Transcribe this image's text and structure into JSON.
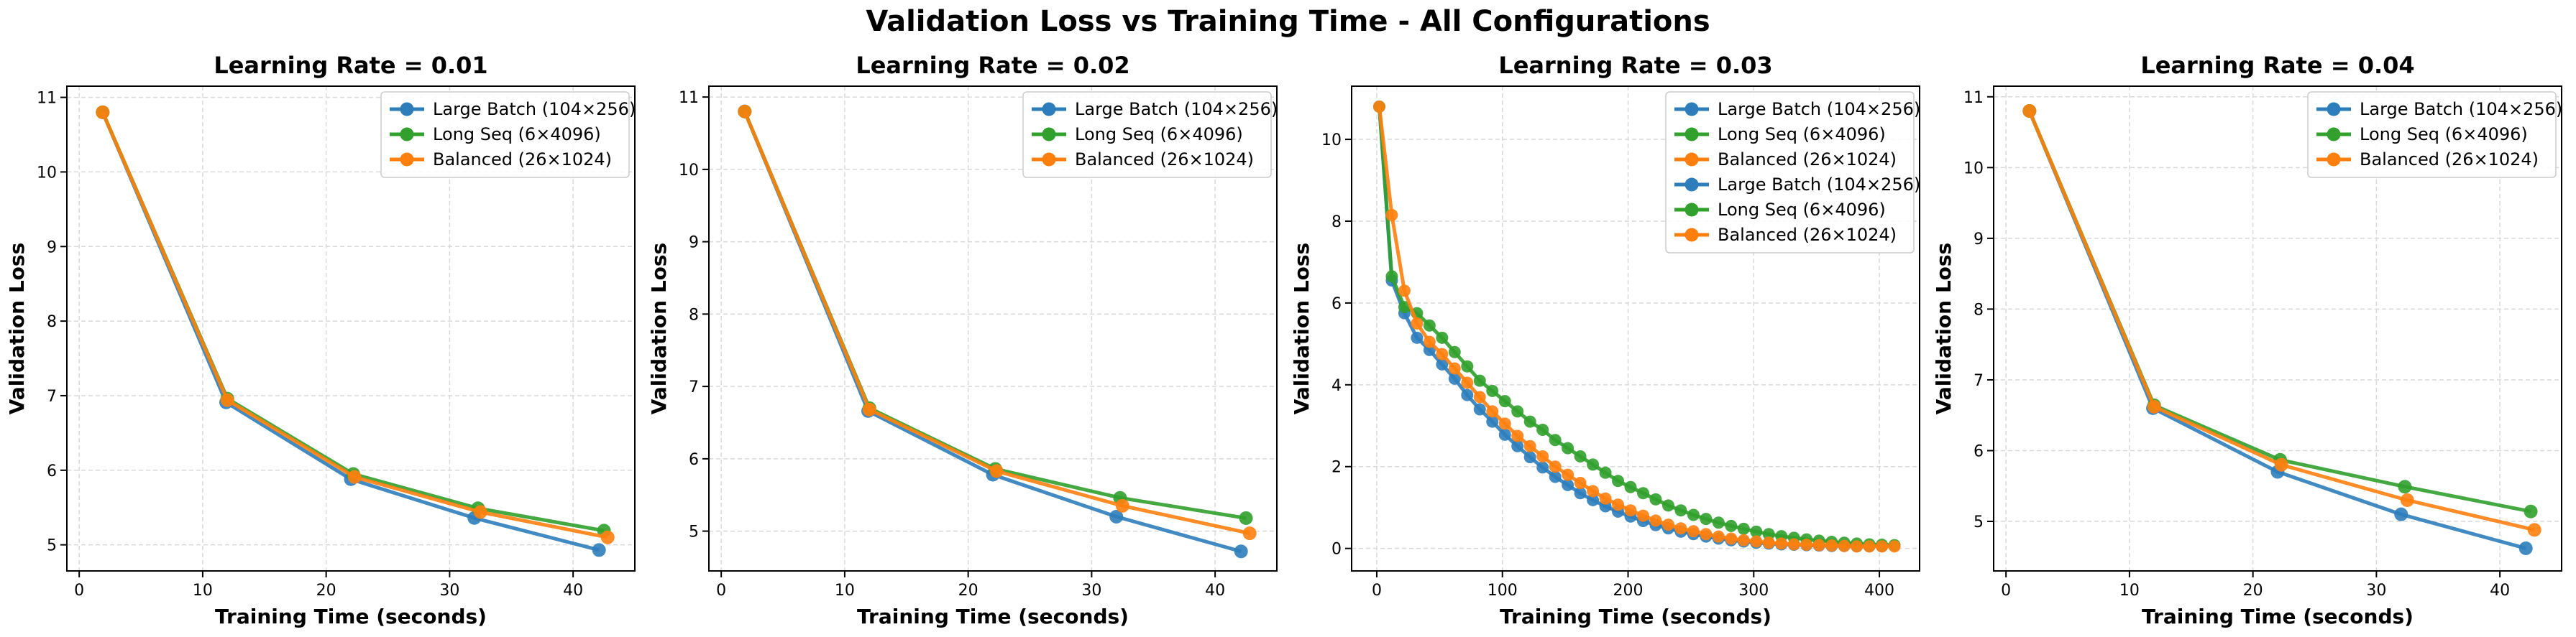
{
  "figure": {
    "suptitle": "Validation Loss vs Training Time - All Configurations"
  },
  "colors": {
    "large_batch": "#2e7dbb",
    "long_seq": "#31a02c",
    "balanced": "#ff7f0e",
    "grid": "#d9d9d9",
    "axis": "#000000"
  },
  "chart_data": [
    {
      "type": "line",
      "title": "Learning Rate = 0.01",
      "xlabel": "Training Time (seconds)",
      "ylabel": "Validation Loss",
      "xlim": [
        -1,
        45
      ],
      "ylim": [
        4.65,
        11.15
      ],
      "xticks": [
        0,
        10,
        20,
        30,
        40
      ],
      "yticks": [
        5,
        6,
        7,
        8,
        9,
        10,
        11
      ],
      "grid": true,
      "legend": "upper right",
      "series": [
        {
          "name": "Large Batch (104×256)",
          "color_key": "large_batch",
          "x": [
            1.9,
            11.9,
            22.0,
            32.0,
            42.1
          ],
          "y": [
            10.8,
            6.91,
            5.88,
            5.36,
            4.93
          ]
        },
        {
          "name": "Long Seq (6×4096)",
          "color_key": "long_seq",
          "x": [
            1.9,
            12.0,
            22.2,
            32.3,
            42.5
          ],
          "y": [
            10.8,
            6.96,
            5.95,
            5.49,
            5.19
          ]
        },
        {
          "name": "Balanced (26×1024)",
          "color_key": "balanced",
          "x": [
            1.9,
            12.0,
            22.3,
            32.5,
            42.8
          ],
          "y": [
            10.8,
            6.94,
            5.91,
            5.44,
            5.1
          ]
        }
      ]
    },
    {
      "type": "line",
      "title": "Learning Rate = 0.02",
      "xlabel": "Training Time (seconds)",
      "ylabel": "Validation Loss",
      "xlim": [
        -1,
        45
      ],
      "ylim": [
        4.45,
        11.15
      ],
      "xticks": [
        0,
        10,
        20,
        30,
        40
      ],
      "yticks": [
        5,
        6,
        7,
        8,
        9,
        10,
        11
      ],
      "grid": true,
      "legend": "upper right",
      "series": [
        {
          "name": "Large Batch (104×256)",
          "color_key": "large_batch",
          "x": [
            1.9,
            11.9,
            22.0,
            32.0,
            42.1
          ],
          "y": [
            10.8,
            6.66,
            5.78,
            5.2,
            4.72
          ]
        },
        {
          "name": "Long Seq (6×4096)",
          "color_key": "long_seq",
          "x": [
            1.9,
            12.0,
            22.2,
            32.3,
            42.5
          ],
          "y": [
            10.8,
            6.7,
            5.86,
            5.46,
            5.18
          ]
        },
        {
          "name": "Balanced (26×1024)",
          "color_key": "balanced",
          "x": [
            1.9,
            12.0,
            22.3,
            32.5,
            42.8
          ],
          "y": [
            10.8,
            6.68,
            5.83,
            5.35,
            4.97
          ]
        }
      ]
    },
    {
      "type": "line",
      "title": "Learning Rate = 0.03",
      "xlabel": "Training Time (seconds)",
      "ylabel": "Validation Loss",
      "xlim": [
        -20,
        432
      ],
      "ylim": [
        -0.55,
        11.3
      ],
      "xticks": [
        0,
        100,
        200,
        300,
        400
      ],
      "yticks": [
        0,
        2,
        4,
        6,
        8,
        10
      ],
      "grid": true,
      "legend": "upper right",
      "series": [
        {
          "name": "Large Batch (104×256)",
          "color_key": "large_batch",
          "x": [
            2,
            12,
            22,
            32,
            42,
            52,
            62,
            72,
            82,
            92,
            102,
            112,
            122,
            132,
            142,
            152,
            162,
            172,
            182,
            192,
            202,
            212,
            222,
            232,
            242,
            252,
            262,
            272,
            282,
            292,
            302,
            312,
            322,
            332,
            342,
            352,
            362,
            372,
            382,
            392,
            402
          ],
          "y": [
            10.8,
            6.55,
            5.75,
            5.15,
            4.85,
            4.5,
            4.15,
            3.75,
            3.4,
            3.1,
            2.78,
            2.5,
            2.23,
            1.98,
            1.75,
            1.55,
            1.35,
            1.18,
            1.03,
            0.9,
            0.78,
            0.67,
            0.57,
            0.49,
            0.41,
            0.35,
            0.29,
            0.24,
            0.2,
            0.17,
            0.14,
            0.12,
            0.1,
            0.09,
            0.08,
            0.07,
            0.06,
            0.06,
            0.05,
            0.05,
            0.05
          ]
        },
        {
          "name": "Long Seq (6×4096)",
          "color_key": "long_seq",
          "x": [
            2,
            12,
            22,
            32,
            42,
            52,
            62,
            72,
            82,
            92,
            102,
            112,
            122,
            132,
            142,
            152,
            162,
            172,
            182,
            192,
            202,
            212,
            222,
            232,
            242,
            252,
            262,
            272,
            282,
            292,
            302,
            312,
            322,
            332,
            342,
            352,
            362,
            372,
            382,
            392,
            402,
            412
          ],
          "y": [
            10.8,
            6.65,
            5.9,
            5.75,
            5.45,
            5.15,
            4.8,
            4.45,
            4.1,
            3.85,
            3.6,
            3.35,
            3.1,
            2.9,
            2.65,
            2.45,
            2.25,
            2.05,
            1.85,
            1.65,
            1.5,
            1.35,
            1.2,
            1.05,
            0.93,
            0.82,
            0.72,
            0.63,
            0.55,
            0.48,
            0.41,
            0.35,
            0.3,
            0.26,
            0.22,
            0.19,
            0.16,
            0.14,
            0.12,
            0.1,
            0.09,
            0.08
          ]
        },
        {
          "name": "Balanced (26×1024)",
          "color_key": "balanced",
          "x": [
            2,
            12,
            22,
            32,
            42,
            52,
            62,
            72,
            82,
            92,
            102,
            112,
            122,
            132,
            142,
            152,
            162,
            172,
            182,
            192,
            202,
            212,
            222,
            232,
            242,
            252,
            262,
            272,
            282,
            292,
            302,
            312,
            322,
            332,
            342,
            352,
            362,
            372,
            382,
            392,
            402,
            412
          ],
          "y": [
            10.8,
            8.15,
            6.3,
            5.5,
            5.05,
            4.75,
            4.4,
            4.05,
            3.7,
            3.35,
            3.05,
            2.75,
            2.5,
            2.25,
            2.0,
            1.8,
            1.6,
            1.4,
            1.22,
            1.07,
            0.93,
            0.8,
            0.68,
            0.58,
            0.49,
            0.42,
            0.35,
            0.29,
            0.24,
            0.2,
            0.17,
            0.14,
            0.12,
            0.1,
            0.09,
            0.08,
            0.07,
            0.06,
            0.05,
            0.05,
            0.05,
            0.05
          ]
        },
        {
          "name": "Large Batch (104×256)",
          "color_key": "large_batch",
          "x": [],
          "y": []
        },
        {
          "name": "Long Seq (6×4096)",
          "color_key": "long_seq",
          "x": [],
          "y": []
        },
        {
          "name": "Balanced (26×1024)",
          "color_key": "balanced",
          "x": [],
          "y": []
        }
      ]
    },
    {
      "type": "line",
      "title": "Learning Rate = 0.04",
      "xlabel": "Training Time (seconds)",
      "ylabel": "Validation Loss",
      "xlim": [
        -1,
        45
      ],
      "ylim": [
        4.3,
        11.15
      ],
      "xticks": [
        0,
        10,
        20,
        30,
        40
      ],
      "yticks": [
        5,
        6,
        7,
        8,
        9,
        10,
        11
      ],
      "grid": true,
      "legend": "upper right",
      "series": [
        {
          "name": "Large Batch (104×256)",
          "color_key": "large_batch",
          "x": [
            1.9,
            11.9,
            22.0,
            32.0,
            42.1
          ],
          "y": [
            10.8,
            6.6,
            5.7,
            5.1,
            4.62
          ]
        },
        {
          "name": "Long Seq (6×4096)",
          "color_key": "long_seq",
          "x": [
            1.9,
            12.0,
            22.2,
            32.3,
            42.5
          ],
          "y": [
            10.8,
            6.64,
            5.87,
            5.49,
            5.14
          ]
        },
        {
          "name": "Balanced (26×1024)",
          "color_key": "balanced",
          "x": [
            1.9,
            12.0,
            22.3,
            32.5,
            42.8
          ],
          "y": [
            10.8,
            6.62,
            5.8,
            5.3,
            4.88
          ]
        }
      ]
    }
  ]
}
